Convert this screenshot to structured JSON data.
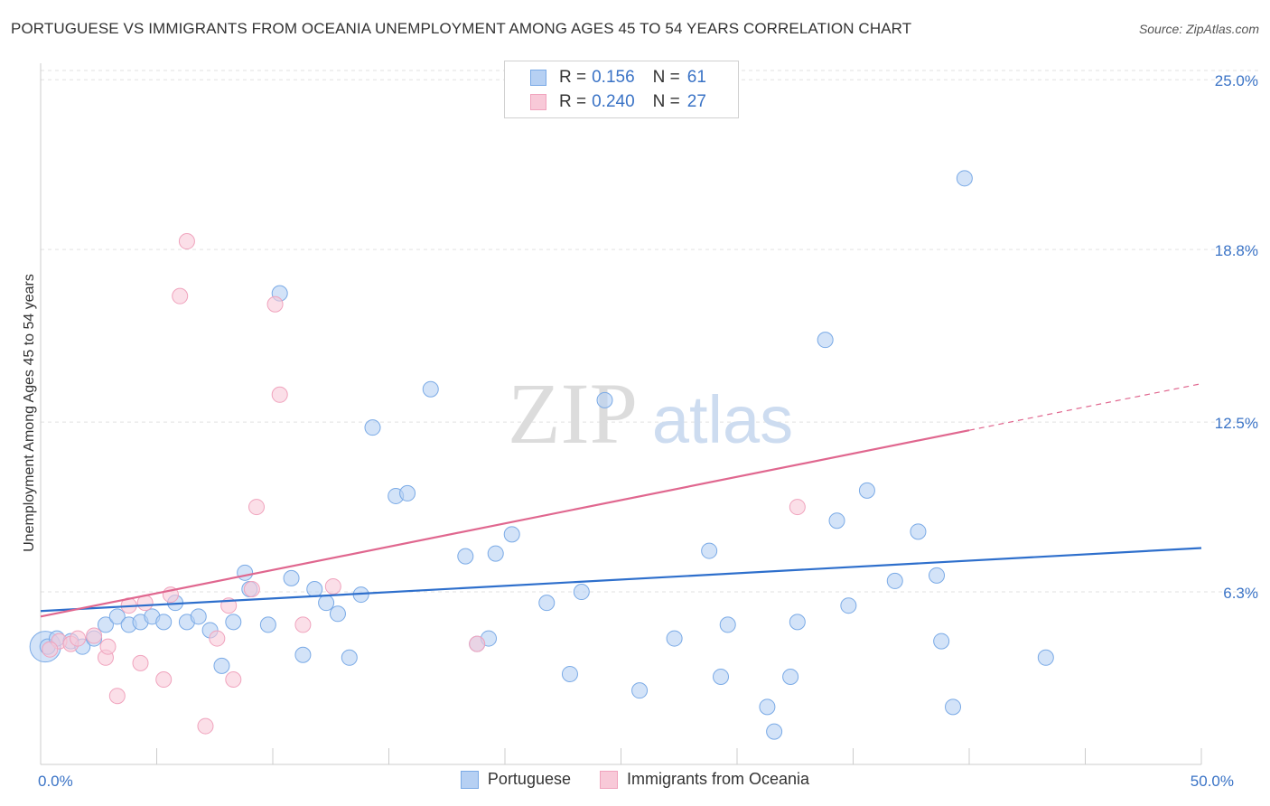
{
  "title": "PORTUGUESE VS IMMIGRANTS FROM OCEANIA UNEMPLOYMENT AMONG AGES 45 TO 54 YEARS CORRELATION CHART",
  "source": "Source: ZipAtlas.com",
  "watermark": {
    "zip": "ZIP",
    "atlas": "atlas"
  },
  "legend": {
    "rows": [
      {
        "r_label": "R =",
        "r_value": "0.156",
        "n_label": "N =",
        "n_value": "61"
      },
      {
        "r_label": "R =",
        "r_value": "0.240",
        "n_label": "N =",
        "n_value": "27"
      }
    ]
  },
  "chart_data": {
    "type": "scatter",
    "ylabel": "Unemployment Among Ages 45 to 54 years",
    "xlim": [
      0,
      50
    ],
    "ylim": [
      0,
      25.6
    ],
    "x_tick_labels": [
      {
        "value": 0,
        "label": "0.0%"
      },
      {
        "value": 50,
        "label": "50.0%"
      }
    ],
    "y_tick_labels": [
      {
        "value": 6.3,
        "label": "6.3%"
      },
      {
        "value": 12.5,
        "label": "12.5%"
      },
      {
        "value": 18.8,
        "label": "18.8%"
      },
      {
        "value": 25.0,
        "label": "25.0%"
      }
    ],
    "grid": true,
    "legend_position": "top-center",
    "series": [
      {
        "name": "Portuguese",
        "color": "#7aaae6",
        "fill": "#b6d0f3",
        "line_color": "#2e6fcc",
        "trend": {
          "x0": 0,
          "y0": 5.6,
          "x1": 50,
          "y1": 7.9
        },
        "points": [
          [
            0.3,
            4.3
          ],
          [
            0.7,
            4.6
          ],
          [
            1.3,
            4.5
          ],
          [
            1.8,
            4.3
          ],
          [
            2.3,
            4.6
          ],
          [
            2.8,
            5.1
          ],
          [
            3.3,
            5.4
          ],
          [
            3.8,
            5.1
          ],
          [
            4.3,
            5.2
          ],
          [
            4.8,
            5.4
          ],
          [
            5.3,
            5.2
          ],
          [
            5.8,
            5.9
          ],
          [
            6.3,
            5.2
          ],
          [
            6.8,
            5.4
          ],
          [
            7.3,
            4.9
          ],
          [
            7.8,
            3.6
          ],
          [
            8.3,
            5.2
          ],
          [
            8.8,
            7.0
          ],
          [
            9.0,
            6.4
          ],
          [
            9.8,
            5.1
          ],
          [
            10.3,
            17.2
          ],
          [
            10.8,
            6.8
          ],
          [
            11.3,
            4.0
          ],
          [
            11.8,
            6.4
          ],
          [
            12.3,
            5.9
          ],
          [
            12.8,
            5.5
          ],
          [
            13.3,
            3.9
          ],
          [
            13.8,
            6.2
          ],
          [
            14.3,
            12.3
          ],
          [
            15.3,
            9.8
          ],
          [
            15.8,
            9.9
          ],
          [
            16.8,
            13.7
          ],
          [
            18.3,
            7.6
          ],
          [
            18.8,
            4.4
          ],
          [
            19.3,
            4.6
          ],
          [
            19.6,
            7.7
          ],
          [
            20.3,
            8.4
          ],
          [
            21.8,
            5.9
          ],
          [
            22.8,
            3.3
          ],
          [
            23.3,
            6.3
          ],
          [
            24.3,
            13.3
          ],
          [
            25.8,
            2.7
          ],
          [
            27.3,
            4.6
          ],
          [
            28.8,
            7.8
          ],
          [
            29.3,
            3.2
          ],
          [
            29.6,
            5.1
          ],
          [
            31.3,
            2.1
          ],
          [
            31.6,
            1.2
          ],
          [
            32.3,
            3.2
          ],
          [
            32.6,
            5.2
          ],
          [
            33.8,
            15.5
          ],
          [
            34.3,
            8.9
          ],
          [
            34.8,
            5.8
          ],
          [
            35.6,
            10.0
          ],
          [
            36.8,
            6.7
          ],
          [
            37.8,
            8.5
          ],
          [
            38.6,
            6.9
          ],
          [
            38.8,
            4.5
          ],
          [
            39.3,
            2.1
          ],
          [
            39.8,
            21.4
          ],
          [
            43.3,
            3.9
          ]
        ],
        "bubble": [
          0.2,
          4.3
        ]
      },
      {
        "name": "Immigrants from Oceania",
        "color": "#f0a3bd",
        "fill": "#f8c9d8",
        "line_color": "#e0678f",
        "trend": {
          "x0": 0,
          "y0": 5.4,
          "x1": 40,
          "y1": 12.2
        },
        "trend_dashed": {
          "x0": 40,
          "y0": 12.2,
          "x1": 50,
          "y1": 13.9
        },
        "points": [
          [
            0.8,
            4.5
          ],
          [
            1.3,
            4.4
          ],
          [
            2.3,
            4.7
          ],
          [
            2.8,
            3.9
          ],
          [
            2.9,
            4.3
          ],
          [
            3.3,
            2.5
          ],
          [
            3.8,
            5.8
          ],
          [
            4.3,
            3.7
          ],
          [
            4.5,
            5.9
          ],
          [
            5.3,
            3.1
          ],
          [
            5.6,
            6.2
          ],
          [
            6.0,
            17.1
          ],
          [
            6.3,
            19.1
          ],
          [
            7.1,
            1.4
          ],
          [
            7.6,
            4.6
          ],
          [
            8.1,
            5.8
          ],
          [
            8.3,
            3.1
          ],
          [
            9.1,
            6.4
          ],
          [
            9.3,
            9.4
          ],
          [
            10.1,
            16.8
          ],
          [
            10.3,
            13.5
          ],
          [
            11.3,
            5.1
          ],
          [
            12.6,
            6.5
          ],
          [
            18.8,
            4.4
          ],
          [
            32.6,
            9.4
          ],
          [
            0.4,
            4.2
          ],
          [
            1.6,
            4.6
          ]
        ]
      }
    ]
  }
}
